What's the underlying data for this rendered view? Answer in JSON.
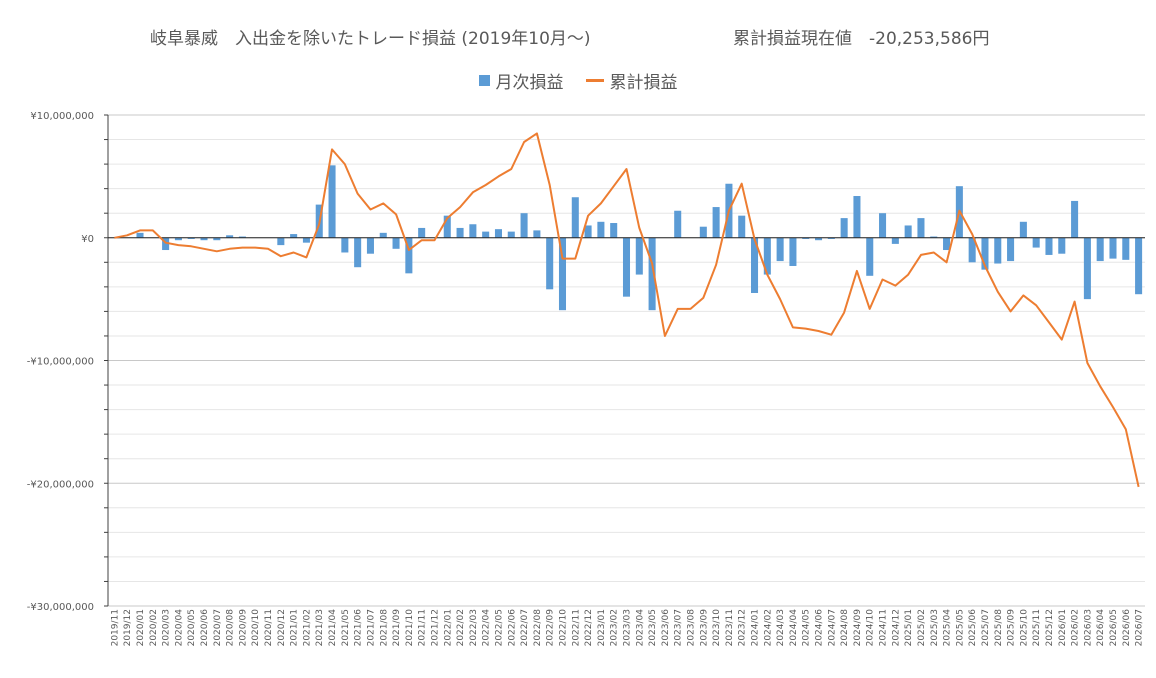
{
  "title": "岐阜暴威　入出金を除いたトレード損益 (2019年10月〜)",
  "cumulative_label": "累計損益現在値　-20,253,586円",
  "colors": {
    "bar": "#5b9bd5",
    "line": "#ed7d31",
    "grid": "#d9d9d9",
    "axis": "#404040"
  },
  "chart_data": {
    "type": "bar",
    "title": "岐阜暴威　入出金を除いたトレード損益 (2019年10月〜)",
    "ylim": [
      -30000000,
      10000000
    ],
    "y_ticks": [
      10000000,
      0,
      -10000000,
      -20000000,
      -30000000
    ],
    "y_tick_labels": [
      "¥10,000,000",
      "¥0",
      "-¥10,000,000",
      "-¥20,000,000",
      "-¥30,000,000"
    ],
    "legend_position": "top",
    "grid": true,
    "categories": [
      "2019/11",
      "2019/12",
      "2020/01",
      "2020/02",
      "2020/03",
      "2020/04",
      "2020/05",
      "2020/06",
      "2020/07",
      "2020/08",
      "2020/09",
      "2020/10",
      "2020/11",
      "2020/12",
      "2021/01",
      "2021/02",
      "2021/03",
      "2021/04",
      "2021/05",
      "2021/06",
      "2021/07",
      "2021/08",
      "2021/09",
      "2021/10",
      "2021/11",
      "2021/12",
      "2022/01",
      "2022/02",
      "2022/03",
      "2022/04",
      "2022/05",
      "2022/06",
      "2022/07",
      "2022/08",
      "2022/09",
      "2022/10",
      "2022/11",
      "2022/12",
      "2023/01",
      "2023/02",
      "2023/03",
      "2023/04",
      "2023/05",
      "2023/06",
      "2023/07",
      "2023/08",
      "2023/09",
      "2023/10",
      "2023/11",
      "2023/12",
      "2024/01",
      "2024/02",
      "2024/03",
      "2024/04",
      "2024/05",
      "2024/06",
      "2024/07",
      "2024/08",
      "2024/09",
      "2024/10",
      "2024/11",
      "2024/12",
      "2025/01",
      "2025/02",
      "2025/03",
      "2025/04",
      "2025/05",
      "2025/06",
      "2025/07",
      "2025/08",
      "2025/09",
      "2025/10",
      "2025/11",
      "2025/12",
      "2026/01",
      "2026/02",
      "2026/03",
      "2026/04",
      "2026/05",
      "2026/06",
      "2026/07"
    ],
    "series": [
      {
        "name": "月次損益",
        "type": "bar",
        "values": [
          0,
          0,
          400000,
          0,
          -1000000,
          -200000,
          -100000,
          -200000,
          -200000,
          200000,
          100000,
          0,
          0,
          -600000,
          300000,
          -400000,
          2700000,
          5900000,
          -1200000,
          -2400000,
          -1300000,
          400000,
          -900000,
          -2900000,
          800000,
          0,
          1800000,
          800000,
          1100000,
          500000,
          700000,
          500000,
          2000000,
          600000,
          -4200000,
          -5900000,
          3300000,
          1000000,
          1300000,
          1200000,
          -4800000,
          -3000000,
          -5900000,
          0,
          2200000,
          0,
          900000,
          2500000,
          4400000,
          1800000,
          -4500000,
          -3000000,
          -1900000,
          -2300000,
          -100000,
          -200000,
          -100000,
          1600000,
          3400000,
          -3100000,
          2000000,
          -500000,
          1000000,
          1600000,
          100000,
          -1000000,
          4200000,
          -2000000,
          -2600000,
          -2100000,
          -1900000,
          1300000,
          -800000,
          -1400000,
          -1300000,
          3000000,
          -5000000,
          -1900000,
          -1700000,
          -1800000,
          -4600000
        ]
      },
      {
        "name": "累計損益",
        "type": "line",
        "values": [
          0,
          200000,
          600000,
          600000,
          -400000,
          -600000,
          -700000,
          -900000,
          -1100000,
          -900000,
          -800000,
          -800000,
          -900000,
          -1500000,
          -1200000,
          -1600000,
          1100000,
          7200000,
          6000000,
          3600000,
          2300000,
          2800000,
          1900000,
          -1000000,
          -200000,
          -200000,
          1600000,
          2500000,
          3700000,
          4300000,
          5000000,
          5600000,
          7800000,
          8500000,
          4300000,
          -1700000,
          -1700000,
          1800000,
          2800000,
          4200000,
          5600000,
          800000,
          -2100000,
          -8000000,
          -5800000,
          -5800000,
          -4900000,
          -2200000,
          2200000,
          4400000,
          -100000,
          -3000000,
          -5000000,
          -7300000,
          -7400000,
          -7600000,
          -7900000,
          -6100000,
          -2700000,
          -5800000,
          -3400000,
          -3900000,
          -3000000,
          -1400000,
          -1200000,
          -2000000,
          2200000,
          300000,
          -2300000,
          -4400000,
          -6000000,
          -4700000,
          -5500000,
          -6900000,
          -8300000,
          -5200000,
          -10200000,
          -12100000,
          -13800000,
          -15600000,
          -20300000
        ]
      }
    ]
  }
}
